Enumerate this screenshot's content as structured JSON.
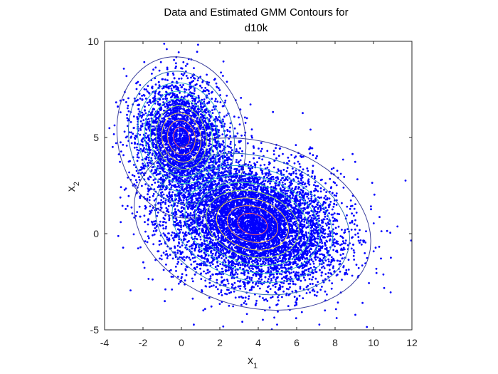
{
  "chart_data": {
    "type": "scatter",
    "title": [
      "Data and Estimated GMM Contours for",
      "d10k"
    ],
    "xlabel": {
      "main": "x",
      "sub": "1"
    },
    "ylabel": {
      "main": "x",
      "sub": "2"
    },
    "xlim": [
      -4,
      12
    ],
    "ylim": [
      -5,
      10
    ],
    "xticks": [
      -4,
      -2,
      0,
      2,
      4,
      6,
      8,
      10,
      12
    ],
    "yticks": [
      -5,
      0,
      5,
      10
    ],
    "grid": false,
    "legend": "none",
    "point_color": "#0000ff",
    "contour_colors": [
      "#2c1a6e",
      "#3b3f9c",
      "#2f6fb5",
      "#2aa2c9",
      "#33c9c0",
      "#55e0a0",
      "#a0e860",
      "#f2e04a",
      "#f9a64c",
      "#f86060"
    ],
    "components": [
      {
        "mean": [
          0,
          5
        ],
        "std": [
          1.2,
          1.5
        ],
        "rho": -0.1,
        "weight": 0.3
      },
      {
        "mean": [
          3.7,
          0.5
        ],
        "std": [
          2.2,
          1.6
        ],
        "rho": -0.2,
        "weight": 0.7
      }
    ],
    "contour_levels_sigma": [
      0.35,
      0.6,
      0.85,
      1.1,
      1.35,
      1.6,
      1.9,
      2.3,
      2.8
    ],
    "n_points_shown": 10000
  }
}
